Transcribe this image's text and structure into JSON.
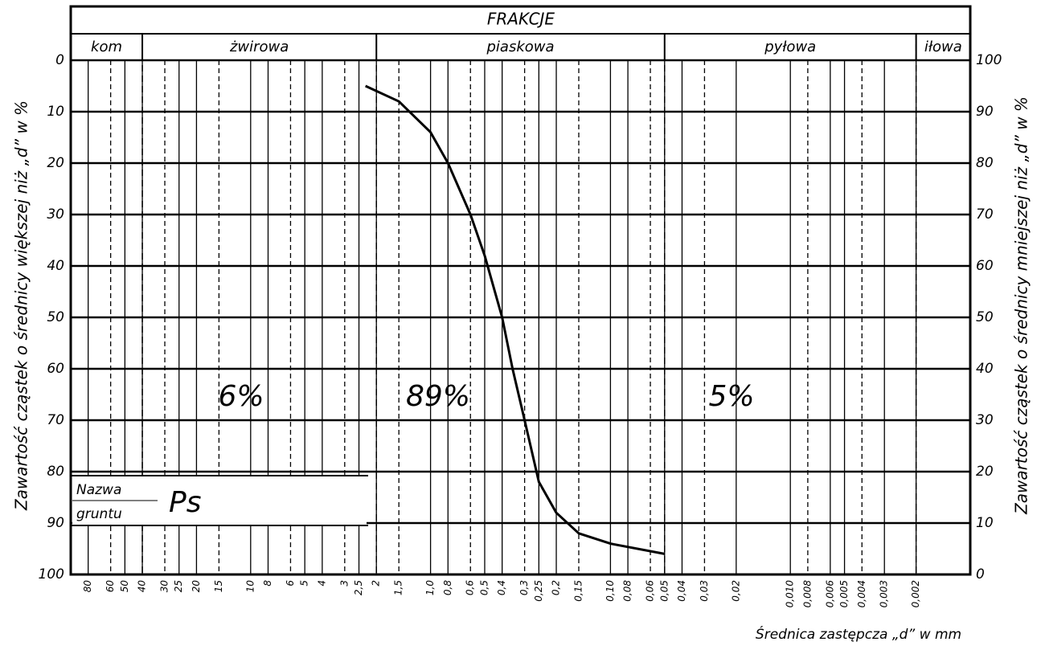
{
  "chart_data": {
    "type": "line",
    "title": "FRAKCJE",
    "y_label": "Zawartość cząstek o średnicy większej niż „d” w %",
    "y2_label": "Zawartość cząstek o średnicy mniejszej niż „d” w %",
    "x_label": "Średnica zastępcza „d” w mm",
    "x_scale": "log",
    "xlim": [
      100,
      0.001
    ],
    "xticks": [
      80,
      60,
      50,
      40,
      30,
      25,
      20,
      15,
      10,
      8,
      6,
      5,
      4,
      3,
      {
        "value": 2.5,
        "label": "2,5"
      },
      2,
      {
        "value": 1.5,
        "label": "1,5"
      },
      {
        "value": 1.0,
        "label": "1,0"
      },
      {
        "value": 0.8,
        "label": "0,8"
      },
      {
        "value": 0.6,
        "label": "0,6"
      },
      {
        "value": 0.5,
        "label": "0,5"
      },
      {
        "value": 0.4,
        "label": "0,4"
      },
      {
        "value": 0.3,
        "label": "0,3"
      },
      {
        "value": 0.25,
        "label": "0,25"
      },
      {
        "value": 0.2,
        "label": "0,2"
      },
      {
        "value": 0.15,
        "label": "0,15"
      },
      {
        "value": 0.1,
        "label": "0,10"
      },
      {
        "value": 0.08,
        "label": "0,08"
      },
      {
        "value": 0.06,
        "label": "0,06"
      },
      {
        "value": 0.05,
        "label": "0,05"
      },
      {
        "value": 0.04,
        "label": "0,04"
      },
      {
        "value": 0.03,
        "label": "0,03"
      },
      {
        "value": 0.02,
        "label": "0,02"
      },
      {
        "value": 0.01,
        "label": "0,010"
      },
      {
        "value": 0.008,
        "label": "0,008"
      },
      {
        "value": 0.006,
        "label": "0,006"
      },
      {
        "value": 0.005,
        "label": "0,005"
      },
      {
        "value": 0.004,
        "label": "0,004"
      },
      {
        "value": 0.003,
        "label": "0,003"
      },
      {
        "value": 0.002,
        "label": "0,002"
      }
    ],
    "ylim": [
      100,
      0
    ],
    "yticks": [
      0,
      10,
      20,
      30,
      40,
      50,
      60,
      70,
      80,
      90,
      100
    ],
    "y2lim": [
      0,
      100
    ],
    "y2ticks": [
      100,
      90,
      80,
      70,
      60,
      50,
      40,
      30,
      20,
      10,
      0
    ],
    "grid": true,
    "fractions": [
      {
        "label": "kom",
        "from": 100,
        "to": 40
      },
      {
        "label": "żwirowa",
        "from": 40,
        "to": 2
      },
      {
        "label": "piaskowa",
        "from": 2,
        "to": 0.05
      },
      {
        "label": "pyłowa",
        "from": 0.05,
        "to": 0.002
      },
      {
        "label": "iłowa",
        "from": 0.002,
        "to": 0.001
      }
    ],
    "series": [
      {
        "color": "#000000",
        "x": [
          2.3,
          1.5,
          1.0,
          0.8,
          0.6,
          0.5,
          0.4,
          0.35,
          0.3,
          0.25,
          0.2,
          0.15,
          0.1,
          0.05
        ],
        "values": [
          5,
          8,
          14,
          20,
          30,
          38,
          50,
          60,
          70,
          82,
          88,
          92,
          94,
          96
        ]
      }
    ],
    "annotations": [
      "6%",
      "89%",
      "5%"
    ],
    "soil_name_label": [
      "Nazwa",
      "gruntu"
    ],
    "soil_name": "Ps"
  }
}
